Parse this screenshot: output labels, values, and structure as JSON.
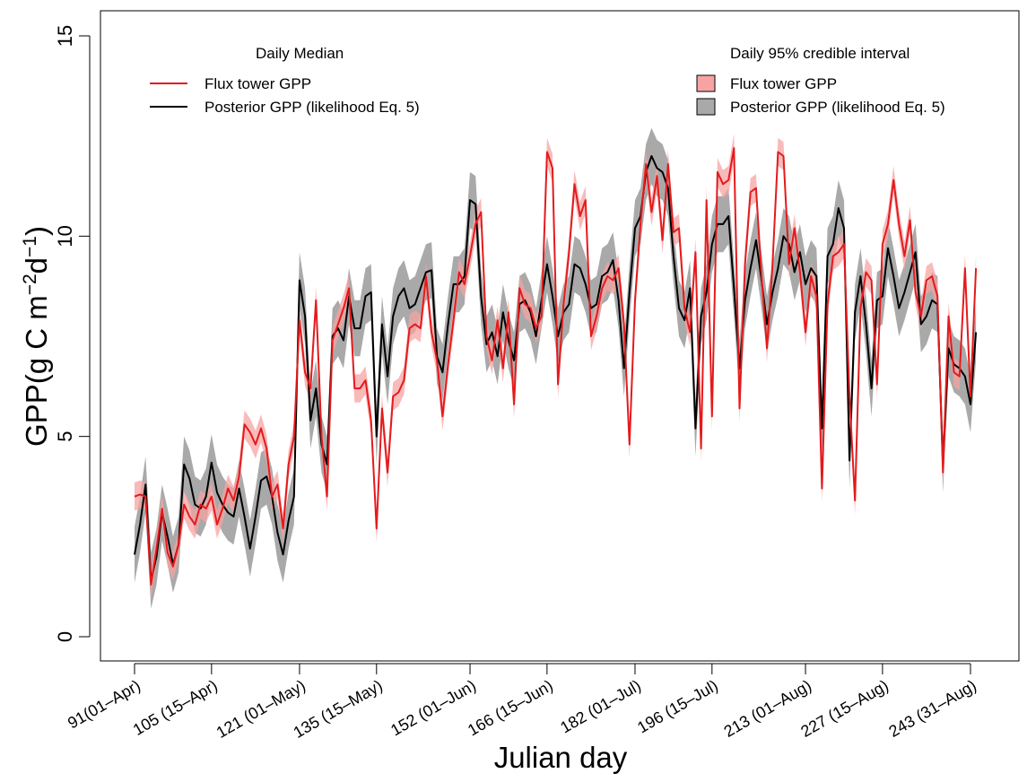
{
  "chart_data": {
    "type": "line",
    "xlabel": "Julian day",
    "ylabel": "GPP(g C m^-2 d^-1)",
    "xlim": [
      91,
      243
    ],
    "ylim": [
      0,
      15
    ],
    "yticks": [
      0,
      5,
      10,
      15
    ],
    "xticks": [
      {
        "value": 91,
        "label": "91(01–Apr)"
      },
      {
        "value": 105,
        "label": "105 (15–Apr)"
      },
      {
        "value": 121,
        "label": "121 (01–May)"
      },
      {
        "value": 135,
        "label": "135 (15–May)"
      },
      {
        "value": 152,
        "label": "152 (01–Jun)"
      },
      {
        "value": 166,
        "label": "166 (15–Jun)"
      },
      {
        "value": 182,
        "label": "182 (01–Jul)"
      },
      {
        "value": 196,
        "label": "196 (15–Jul)"
      },
      {
        "value": 213,
        "label": "213 (01–Aug)"
      },
      {
        "value": 227,
        "label": "227 (15–Aug)"
      },
      {
        "value": 243,
        "label": "243 (31–Aug)"
      }
    ],
    "colors": {
      "flux": "#e41a1c",
      "flux_band": "#f7a3a3",
      "posterior": "#000000",
      "posterior_band": "#a9a9a9"
    },
    "legend_left": {
      "title": "Daily Median",
      "items": [
        "Flux tower GPP",
        "Posterior GPP (likelihood Eq. 5)"
      ]
    },
    "legend_right": {
      "title": "Daily 95% credible interval",
      "items": [
        "Flux tower GPP",
        "Posterior GPP (likelihood Eq. 5)"
      ]
    },
    "series": [
      {
        "name": "Flux tower GPP",
        "anchors": [
          [
            91,
            3.5
          ],
          [
            92,
            3.55
          ],
          [
            93,
            3.5
          ],
          [
            94,
            1.3
          ],
          [
            95,
            2.2
          ],
          [
            96,
            3.2
          ],
          [
            97,
            2.1
          ],
          [
            98,
            1.75
          ],
          [
            99,
            2.3
          ],
          [
            100,
            3.3
          ],
          [
            101,
            3.0
          ],
          [
            102,
            2.8
          ],
          [
            103,
            3.3
          ],
          [
            104,
            3.2
          ],
          [
            105,
            3.5
          ],
          [
            106,
            2.8
          ],
          [
            107,
            3.2
          ],
          [
            108,
            3.7
          ],
          [
            109,
            3.4
          ],
          [
            110,
            4.0
          ],
          [
            111,
            5.3
          ],
          [
            112,
            5.1
          ],
          [
            113,
            4.8
          ],
          [
            114,
            5.2
          ],
          [
            115,
            4.7
          ],
          [
            116,
            3.5
          ],
          [
            117,
            3.8
          ],
          [
            118,
            2.7
          ],
          [
            119,
            4.3
          ],
          [
            120,
            5.0
          ],
          [
            121,
            7.9
          ],
          [
            122,
            6.6
          ],
          [
            123,
            6.2
          ],
          [
            124,
            8.4
          ],
          [
            125,
            5.0
          ],
          [
            126,
            3.5
          ],
          [
            127,
            7.4
          ],
          [
            128,
            7.8
          ],
          [
            129,
            8.2
          ],
          [
            130,
            8.7
          ],
          [
            131,
            6.2
          ],
          [
            132,
            6.2
          ],
          [
            133,
            6.4
          ],
          [
            134,
            5.4
          ],
          [
            135,
            2.7
          ],
          [
            136,
            5.7
          ],
          [
            137,
            4.1
          ],
          [
            138,
            6.0
          ],
          [
            139,
            6.1
          ],
          [
            140,
            6.4
          ],
          [
            141,
            7.7
          ],
          [
            142,
            7.8
          ],
          [
            143,
            7.7
          ],
          [
            144,
            9.0
          ],
          [
            145,
            7.6
          ],
          [
            146,
            6.9
          ],
          [
            147,
            5.5
          ],
          [
            148,
            6.8
          ],
          [
            149,
            7.9
          ],
          [
            150,
            9.1
          ],
          [
            151,
            8.8
          ],
          [
            152,
            9.5
          ],
          [
            153,
            10.3
          ],
          [
            154,
            10.6
          ],
          [
            155,
            7.5
          ],
          [
            156,
            6.9
          ],
          [
            157,
            7.9
          ],
          [
            158,
            6.7
          ],
          [
            159,
            8.1
          ],
          [
            160,
            5.8
          ],
          [
            161,
            8.7
          ],
          [
            162,
            8.3
          ],
          [
            163,
            8.2
          ],
          [
            164,
            7.7
          ],
          [
            165,
            8.0
          ],
          [
            166,
            12.1
          ],
          [
            167,
            11.7
          ],
          [
            168,
            6.3
          ],
          [
            169,
            8.3
          ],
          [
            170,
            9.6
          ],
          [
            171,
            11.3
          ],
          [
            172,
            10.5
          ],
          [
            173,
            10.9
          ],
          [
            174,
            7.5
          ],
          [
            175,
            8.0
          ],
          [
            176,
            8.7
          ],
          [
            177,
            9.0
          ],
          [
            178,
            8.9
          ],
          [
            179,
            9.2
          ],
          [
            180,
            7.8
          ],
          [
            181,
            4.8
          ],
          [
            182,
            8.4
          ],
          [
            183,
            10.3
          ],
          [
            184,
            11.8
          ],
          [
            185,
            10.6
          ],
          [
            186,
            11.5
          ],
          [
            187,
            9.9
          ],
          [
            188,
            11.8
          ],
          [
            189,
            10.1
          ],
          [
            190,
            10.2
          ],
          [
            191,
            8.2
          ],
          [
            192,
            7.6
          ],
          [
            193,
            9.6
          ],
          [
            194,
            4.7
          ],
          [
            195,
            10.9
          ],
          [
            196,
            5.5
          ],
          [
            197,
            11.6
          ],
          [
            198,
            11.3
          ],
          [
            199,
            11.4
          ],
          [
            200,
            12.2
          ],
          [
            201,
            5.7
          ],
          [
            202,
            9.3
          ],
          [
            203,
            11.1
          ],
          [
            204,
            11.2
          ],
          [
            205,
            9.0
          ],
          [
            206,
            7.2
          ],
          [
            207,
            9.3
          ],
          [
            208,
            12.1
          ],
          [
            209,
            12.0
          ],
          [
            210,
            9.3
          ],
          [
            211,
            10.2
          ],
          [
            212,
            9.1
          ],
          [
            213,
            7.6
          ],
          [
            214,
            9.0
          ],
          [
            215,
            8.5
          ],
          [
            216,
            3.7
          ],
          [
            217,
            8.3
          ],
          [
            218,
            9.5
          ],
          [
            219,
            9.6
          ],
          [
            220,
            9.8
          ],
          [
            221,
            6.0
          ],
          [
            222,
            3.4
          ],
          [
            223,
            8.2
          ],
          [
            224,
            9.1
          ],
          [
            225,
            8.9
          ],
          [
            226,
            6.3
          ],
          [
            227,
            9.8
          ],
          [
            228,
            10.3
          ],
          [
            229,
            11.4
          ],
          [
            230,
            10.3
          ],
          [
            231,
            9.5
          ],
          [
            232,
            10.4
          ],
          [
            233,
            8.6
          ],
          [
            234,
            8.0
          ],
          [
            235,
            8.9
          ],
          [
            236,
            9.0
          ],
          [
            237,
            8.5
          ],
          [
            238,
            4.1
          ],
          [
            239,
            8.0
          ],
          [
            240,
            6.6
          ],
          [
            241,
            6.5
          ],
          [
            242,
            9.2
          ],
          [
            243,
            6.0
          ],
          [
            244,
            9.2
          ]
        ]
      },
      {
        "name": "Posterior GPP (likelihood Eq. 5)",
        "anchors": [
          [
            91,
            2.05
          ],
          [
            92,
            2.8
          ],
          [
            93,
            3.8
          ],
          [
            94,
            1.4
          ],
          [
            95,
            2.0
          ],
          [
            96,
            3.1
          ],
          [
            97,
            2.5
          ],
          [
            98,
            1.8
          ],
          [
            99,
            2.3
          ],
          [
            100,
            4.3
          ],
          [
            101,
            3.95
          ],
          [
            102,
            3.3
          ],
          [
            103,
            3.2
          ],
          [
            104,
            3.5
          ],
          [
            105,
            4.35
          ],
          [
            106,
            3.6
          ],
          [
            107,
            3.3
          ],
          [
            108,
            3.1
          ],
          [
            109,
            3.0
          ],
          [
            110,
            3.7
          ],
          [
            111,
            3.0
          ],
          [
            112,
            2.2
          ],
          [
            113,
            3.0
          ],
          [
            114,
            3.9
          ],
          [
            115,
            4.0
          ],
          [
            116,
            3.5
          ],
          [
            117,
            2.6
          ],
          [
            118,
            2.05
          ],
          [
            119,
            2.9
          ],
          [
            120,
            3.5
          ],
          [
            121,
            8.9
          ],
          [
            122,
            8.0
          ],
          [
            123,
            5.4
          ],
          [
            124,
            6.2
          ],
          [
            125,
            4.8
          ],
          [
            126,
            4.3
          ],
          [
            127,
            7.5
          ],
          [
            128,
            7.7
          ],
          [
            129,
            7.4
          ],
          [
            130,
            8.5
          ],
          [
            131,
            7.7
          ],
          [
            132,
            7.7
          ],
          [
            133,
            8.5
          ],
          [
            134,
            8.6
          ],
          [
            135,
            5.0
          ],
          [
            136,
            7.8
          ],
          [
            137,
            6.5
          ],
          [
            138,
            8.0
          ],
          [
            139,
            8.5
          ],
          [
            140,
            8.7
          ],
          [
            141,
            8.2
          ],
          [
            142,
            8.3
          ],
          [
            143,
            8.7
          ],
          [
            144,
            9.1
          ],
          [
            145,
            9.15
          ],
          [
            146,
            7.0
          ],
          [
            147,
            6.6
          ],
          [
            148,
            7.8
          ],
          [
            149,
            8.8
          ],
          [
            150,
            8.8
          ],
          [
            151,
            9.0
          ],
          [
            152,
            10.9
          ],
          [
            153,
            10.8
          ],
          [
            154,
            8.5
          ],
          [
            155,
            7.3
          ],
          [
            156,
            7.6
          ],
          [
            157,
            7.0
          ],
          [
            158,
            8.1
          ],
          [
            159,
            7.4
          ],
          [
            160,
            6.9
          ],
          [
            161,
            8.3
          ],
          [
            162,
            8.4
          ],
          [
            163,
            8.1
          ],
          [
            164,
            7.5
          ],
          [
            165,
            8.4
          ],
          [
            166,
            9.3
          ],
          [
            167,
            8.5
          ],
          [
            168,
            7.5
          ],
          [
            169,
            8.1
          ],
          [
            170,
            8.3
          ],
          [
            171,
            9.3
          ],
          [
            172,
            9.2
          ],
          [
            173,
            8.8
          ],
          [
            174,
            8.2
          ],
          [
            175,
            8.3
          ],
          [
            176,
            9.0
          ],
          [
            177,
            9.1
          ],
          [
            178,
            9.4
          ],
          [
            179,
            8.4
          ],
          [
            180,
            6.7
          ],
          [
            181,
            8.6
          ],
          [
            182,
            10.2
          ],
          [
            183,
            10.5
          ],
          [
            184,
            11.6
          ],
          [
            185,
            12.0
          ],
          [
            186,
            11.7
          ],
          [
            187,
            11.6
          ],
          [
            188,
            11.2
          ],
          [
            189,
            9.5
          ],
          [
            190,
            8.2
          ],
          [
            191,
            7.9
          ],
          [
            192,
            8.7
          ],
          [
            193,
            5.2
          ],
          [
            194,
            8.0
          ],
          [
            195,
            8.6
          ],
          [
            196,
            9.8
          ],
          [
            197,
            10.3
          ],
          [
            198,
            10.3
          ],
          [
            199,
            10.5
          ],
          [
            200,
            8.7
          ],
          [
            201,
            6.7
          ],
          [
            202,
            8.4
          ],
          [
            203,
            9.2
          ],
          [
            204,
            9.9
          ],
          [
            205,
            8.9
          ],
          [
            206,
            7.8
          ],
          [
            207,
            8.6
          ],
          [
            208,
            9.2
          ],
          [
            209,
            10.0
          ],
          [
            210,
            9.8
          ],
          [
            211,
            9.1
          ],
          [
            212,
            9.6
          ],
          [
            213,
            8.8
          ],
          [
            214,
            9.2
          ],
          [
            215,
            9.0
          ],
          [
            216,
            5.2
          ],
          [
            217,
            9.5
          ],
          [
            218,
            9.8
          ],
          [
            219,
            10.7
          ],
          [
            220,
            10.2
          ],
          [
            221,
            4.4
          ],
          [
            222,
            8.1
          ],
          [
            223,
            9.0
          ],
          [
            224,
            7.8
          ],
          [
            225,
            6.2
          ],
          [
            226,
            8.4
          ],
          [
            227,
            8.5
          ],
          [
            228,
            9.7
          ],
          [
            229,
            9.0
          ],
          [
            230,
            8.2
          ],
          [
            231,
            8.6
          ],
          [
            232,
            9.1
          ],
          [
            233,
            9.6
          ],
          [
            234,
            7.8
          ],
          [
            235,
            8.0
          ],
          [
            236,
            8.4
          ],
          [
            237,
            8.3
          ],
          [
            238,
            4.3
          ],
          [
            239,
            7.2
          ],
          [
            240,
            6.8
          ],
          [
            241,
            6.7
          ],
          [
            242,
            6.5
          ],
          [
            243,
            5.8
          ],
          [
            244,
            7.6
          ]
        ]
      }
    ],
    "band_halfwidth": {
      "Flux tower GPP": 0.35,
      "Posterior GPP (likelihood Eq. 5)": 0.7
    }
  }
}
